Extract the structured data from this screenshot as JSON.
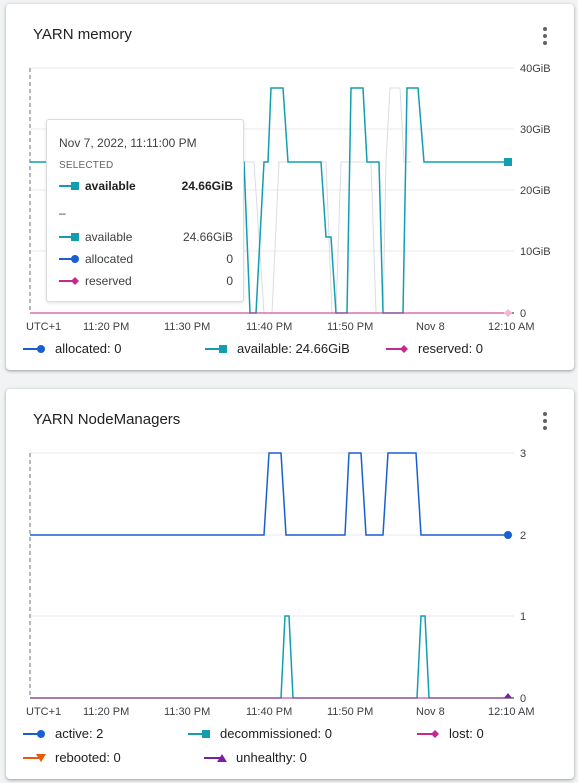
{
  "card_memory": {
    "title": "YARN memory",
    "yticks": [
      "40GiB",
      "30GiB",
      "20GiB",
      "10GiB",
      "0"
    ],
    "xticks": [
      "UTC+1",
      "11:20 PM",
      "11:30 PM",
      "11:40 PM",
      "11:50 PM",
      "Nov 8",
      "12:10 AM"
    ],
    "tooltip": {
      "date": "Nov 7, 2022, 11:11:00 PM",
      "selected_label": "SELECTED",
      "selected_series": "available",
      "selected_value": "24.66GiB",
      "dash": "–",
      "rows": [
        {
          "label": "available",
          "value": "24.66GiB"
        },
        {
          "label": "allocated",
          "value": "0"
        },
        {
          "label": "reserved",
          "value": "0"
        }
      ]
    },
    "legend": [
      {
        "text": "allocated: 0"
      },
      {
        "text": "available: 24.66GiB"
      },
      {
        "text": "reserved: 0"
      }
    ]
  },
  "card_nodemanagers": {
    "title": "YARN NodeManagers",
    "yticks": [
      "3",
      "2",
      "1",
      "0"
    ],
    "xticks": [
      "UTC+1",
      "11:20 PM",
      "11:30 PM",
      "11:40 PM",
      "11:50 PM",
      "Nov 8",
      "12:10 AM"
    ],
    "legend": [
      {
        "text": "active: 2"
      },
      {
        "text": "decommissioned: 0"
      },
      {
        "text": "lost: 0"
      },
      {
        "text": "rebooted: 0"
      },
      {
        "text": "unhealthy: 0"
      }
    ]
  },
  "colors": {
    "allocated": "#1a5fd0",
    "available": "#129eaf",
    "reserved": "#c5288e",
    "active": "#1a5fd0",
    "decommissioned": "#129eaf",
    "lost": "#c5288e",
    "rebooted": "#e8590c",
    "unhealthy": "#7b1fa2",
    "grid": "#e8eaed"
  }
}
